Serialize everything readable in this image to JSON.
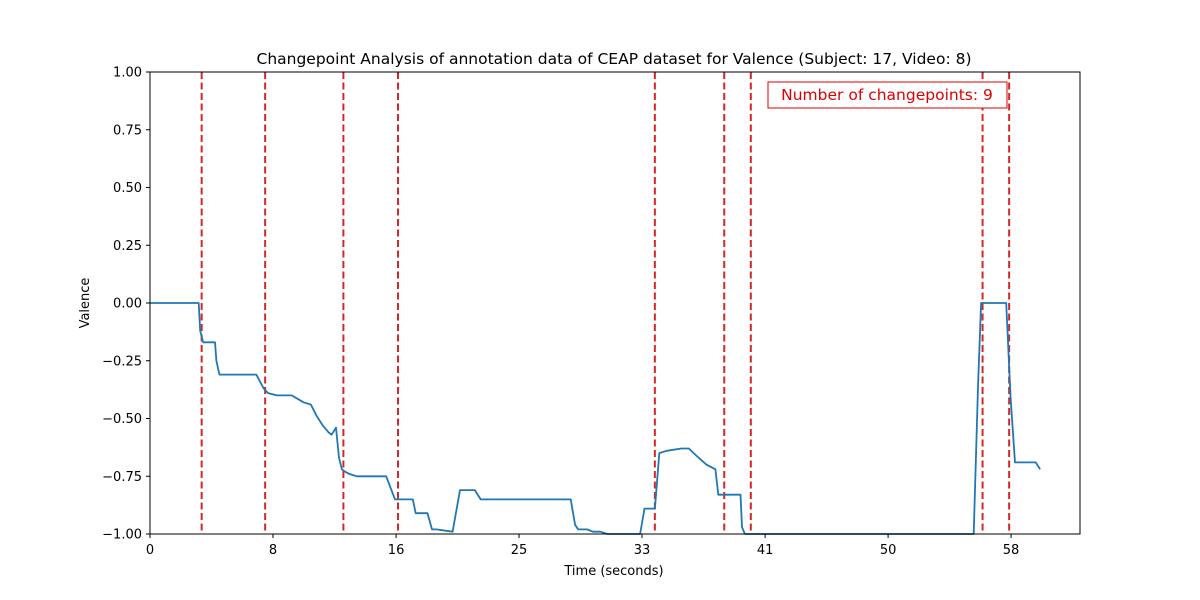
{
  "chart_data": {
    "type": "line",
    "title": "Changepoint Analysis of annotation data of CEAP dataset for Valence (Subject: 17, Video: 8)",
    "xlabel": "Time (seconds)",
    "ylabel": "Valence",
    "xlim": [
      0,
      63
    ],
    "ylim": [
      -1.0,
      1.0
    ],
    "x_ticks": [
      0,
      8.33,
      16.67,
      25,
      33.33,
      41.67,
      50,
      58.33
    ],
    "x_tick_labels": [
      "0",
      "8",
      "16",
      "25",
      "33",
      "41",
      "50",
      "58"
    ],
    "y_ticks": [
      -1.0,
      -0.75,
      -0.5,
      -0.25,
      0.0,
      0.25,
      0.5,
      0.75,
      1.0
    ],
    "y_tick_labels": [
      "−1.00",
      "−0.75",
      "−0.50",
      "−0.25",
      "0.00",
      "0.25",
      "0.50",
      "0.75",
      "1.00"
    ],
    "grid": false,
    "series": [
      {
        "color": "#1f77b4",
        "x": [
          0,
          3.3,
          3.4,
          3.6,
          4.4,
          4.5,
          4.7,
          5.5,
          6.5,
          7.2,
          7.7,
          8.0,
          8.6,
          9.0,
          9.6,
          10.4,
          10.9,
          11.3,
          11.7,
          12.1,
          12.3,
          12.6,
          12.8,
          13.0,
          13.2,
          13.5,
          14.0,
          15.0,
          16.0,
          16.6,
          16.9,
          17.8,
          18.0,
          18.8,
          19.1,
          19.4,
          20.5,
          21.0,
          21.2,
          22.0,
          22.4,
          23.0,
          25.0,
          27.0,
          28.5,
          28.8,
          29.0,
          29.6,
          30.0,
          30.5,
          31.0,
          32.0,
          33.2,
          33.5,
          33.7,
          34.2,
          34.5,
          35.0,
          36.0,
          36.5,
          37.0,
          37.7,
          38.3,
          38.5,
          39.0,
          40.0,
          40.1,
          40.3,
          40.5,
          55.8,
          56.1,
          56.3,
          58.0,
          58.3,
          58.6,
          59.0,
          60.0,
          60.3
        ],
        "y": [
          0.0,
          0.0,
          -0.12,
          -0.17,
          -0.17,
          -0.25,
          -0.31,
          -0.31,
          -0.31,
          -0.31,
          -0.37,
          -0.39,
          -0.4,
          -0.4,
          -0.4,
          -0.43,
          -0.44,
          -0.49,
          -0.53,
          -0.56,
          -0.57,
          -0.54,
          -0.67,
          -0.72,
          -0.73,
          -0.74,
          -0.75,
          -0.75,
          -0.75,
          -0.85,
          -0.85,
          -0.85,
          -0.91,
          -0.91,
          -0.98,
          -0.98,
          -0.99,
          -0.81,
          -0.81,
          -0.81,
          -0.85,
          -0.85,
          -0.85,
          -0.85,
          -0.85,
          -0.96,
          -0.98,
          -0.98,
          -0.99,
          -0.99,
          -1.0,
          -1.0,
          -1.0,
          -0.89,
          -0.89,
          -0.89,
          -0.65,
          -0.64,
          -0.63,
          -0.63,
          -0.66,
          -0.7,
          -0.72,
          -0.83,
          -0.83,
          -0.83,
          -0.97,
          -1.0,
          -1.0,
          -1.0,
          -0.35,
          0.0,
          0.0,
          -0.41,
          -0.69,
          -0.69,
          -0.69,
          -0.72
        ]
      }
    ],
    "changepoints": [
      3.5,
      7.8,
      13.1,
      16.8,
      34.2,
      38.9,
      40.7,
      56.4,
      58.2
    ],
    "annotation": "Number of changepoints: 9",
    "colors": {
      "line": "#1f77b4",
      "changepoint": "#d62728",
      "annotation": "#e00000"
    }
  }
}
